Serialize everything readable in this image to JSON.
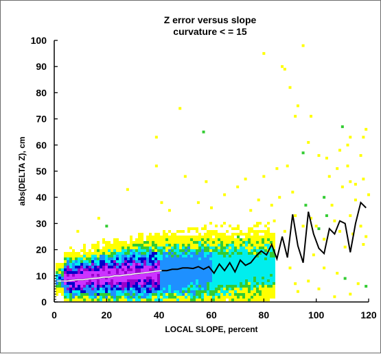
{
  "chart_data": {
    "type": "scatter",
    "title": "Z error versus slope",
    "subtitle": "curvature < = 15",
    "xlabel": "LOCAL SLOPE, percent",
    "ylabel": "abs(DELTA Z), cm",
    "xlim": [
      0,
      120
    ],
    "ylim": [
      0,
      100
    ],
    "xticks": [
      0,
      20,
      40,
      60,
      80,
      100,
      120
    ],
    "yticks": [
      0,
      10,
      20,
      30,
      40,
      50,
      60,
      70,
      80,
      90,
      100
    ],
    "grid": false,
    "density_colors": [
      "#ffff00",
      "#33cc33",
      "#00eeee",
      "#1e90ff",
      "#0000cc",
      "#9900cc",
      "#cc33ff"
    ],
    "line_colors": {
      "mean": "#000000",
      "mean_low_slope": "#ffffff"
    },
    "series": [
      {
        "values_x": [
          1,
          3,
          5,
          7,
          9,
          11,
          13,
          15,
          17,
          19,
          21,
          23,
          25,
          27,
          29,
          31,
          33,
          35,
          37,
          39,
          41,
          43,
          45,
          47,
          49,
          51,
          53,
          55,
          57,
          59,
          61,
          63,
          65,
          67,
          69,
          71,
          73,
          75,
          77,
          79,
          81,
          83,
          85,
          87,
          89,
          91,
          93,
          95,
          97,
          99,
          101,
          103,
          105,
          107,
          109,
          111,
          113,
          115,
          117,
          119
        ],
        "values_y": [
          8,
          8,
          8,
          8.3,
          8.5,
          8.5,
          8.8,
          9,
          9.2,
          9.5,
          9.5,
          10,
          10,
          10.3,
          10.5,
          10.8,
          11,
          11.2,
          11.5,
          11.8,
          12,
          12,
          12.5,
          12.5,
          13,
          13,
          12.8,
          13.5,
          12.5,
          13.5,
          11,
          14.5,
          12,
          15,
          11.5,
          16,
          14,
          15,
          17.5,
          19.5,
          18,
          22,
          16.5,
          25,
          17,
          33.5,
          21.5,
          15,
          34.5,
          26,
          20.5,
          18.5,
          28,
          26,
          31,
          30,
          19,
          30,
          38,
          36
        ]
      }
    ],
    "outliers": [
      [
        39,
        52
      ],
      [
        39,
        63
      ],
      [
        48,
        74
      ],
      [
        50,
        48
      ],
      [
        57,
        65
      ],
      [
        80,
        95
      ],
      [
        87,
        90
      ],
      [
        88,
        89
      ],
      [
        90,
        82
      ],
      [
        95,
        98
      ],
      [
        93,
        75
      ],
      [
        92,
        71
      ],
      [
        98,
        71
      ],
      [
        110,
        67
      ],
      [
        112,
        60
      ],
      [
        119,
        66
      ],
      [
        115,
        45
      ],
      [
        117,
        56
      ],
      [
        118,
        47
      ],
      [
        108,
        51
      ],
      [
        105,
        48
      ],
      [
        112,
        52
      ],
      [
        103,
        40
      ],
      [
        110,
        44
      ],
      [
        113,
        46
      ],
      [
        109,
        58
      ],
      [
        113,
        63
      ],
      [
        118,
        63
      ],
      [
        86,
        40
      ],
      [
        83,
        37
      ],
      [
        91,
        42
      ],
      [
        96,
        37
      ],
      [
        106,
        37
      ],
      [
        115,
        39
      ],
      [
        120,
        41
      ],
      [
        101,
        56
      ],
      [
        104,
        55
      ],
      [
        80,
        48
      ],
      [
        85,
        51
      ],
      [
        89,
        52
      ],
      [
        95,
        57
      ],
      [
        97,
        61
      ],
      [
        58,
        46
      ],
      [
        65,
        41
      ],
      [
        70,
        44
      ],
      [
        73,
        47
      ],
      [
        28,
        43
      ],
      [
        41,
        38
      ],
      [
        44,
        35
      ],
      [
        20,
        29
      ],
      [
        9,
        27
      ],
      [
        17,
        32
      ],
      [
        55,
        38
      ],
      [
        60,
        36
      ],
      [
        75,
        35
      ],
      [
        78,
        39
      ],
      [
        98,
        32
      ],
      [
        100,
        29
      ],
      [
        104,
        33
      ],
      [
        107,
        31
      ],
      [
        113,
        33
      ],
      [
        117,
        29
      ],
      [
        119,
        25
      ],
      [
        84,
        31
      ],
      [
        88,
        27
      ],
      [
        92,
        33
      ],
      [
        95,
        29
      ],
      [
        101,
        28
      ],
      [
        109,
        27
      ],
      [
        114,
        26
      ],
      [
        103,
        24
      ],
      [
        111,
        21
      ],
      [
        118,
        22
      ],
      [
        99,
        18
      ],
      [
        103,
        13
      ],
      [
        108,
        11
      ],
      [
        111,
        9
      ],
      [
        116,
        7
      ],
      [
        97,
        8
      ],
      [
        93,
        4
      ],
      [
        92,
        7
      ],
      [
        90,
        13
      ],
      [
        101,
        5
      ],
      [
        107,
        2
      ],
      [
        113,
        3
      ],
      [
        119,
        6
      ]
    ]
  }
}
